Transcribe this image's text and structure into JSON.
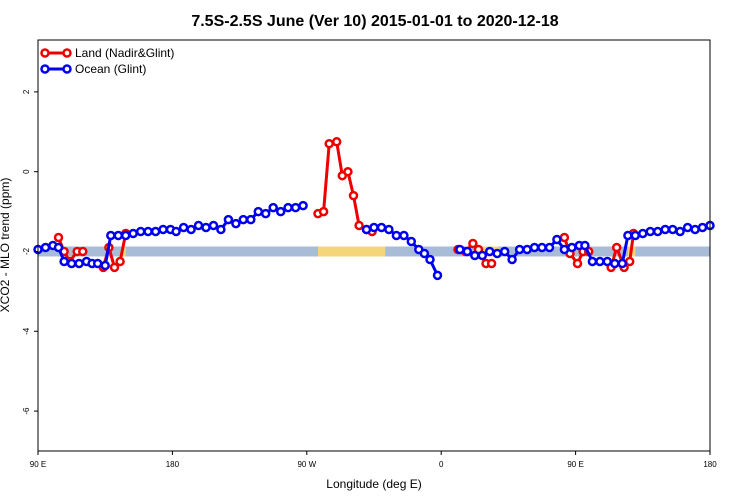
{
  "chart_data": {
    "type": "line",
    "title": "7.5S-2.5S June (Ver 10)   2015-01-01 to 2020-12-18",
    "xlabel": "Longitude (deg E)",
    "ylabel": "XCO2 - MLO trend (ppm)",
    "xlim": [
      90,
      450
    ],
    "ylim": [
      -7,
      3.3
    ],
    "x_ticks": [
      {
        "value": 90,
        "label": "90 E"
      },
      {
        "value": 162,
        "label": "180"
      },
      {
        "value": 234,
        "label": "90 W"
      },
      {
        "value": 306,
        "label": "0"
      },
      {
        "value": 378,
        "label": "90 E"
      },
      {
        "value": 450,
        "label": "180"
      }
    ],
    "y_ticks": [
      {
        "value": 2,
        "label": "2"
      },
      {
        "value": 0,
        "label": "0"
      },
      {
        "value": -2,
        "label": "-2"
      },
      {
        "value": -4,
        "label": "-4"
      },
      {
        "value": -6,
        "label": "-6"
      }
    ],
    "legend_position": "top-left",
    "colors": {
      "land": "#ee0000",
      "ocean": "#0000ee",
      "band_ocean": "#a8bcd8",
      "band_land": "#f5d57a"
    },
    "bands": [
      {
        "name": "ocean-band",
        "x0": 90,
        "x1": 450,
        "y": -2.0,
        "color": "#a8bcd8"
      },
      {
        "name": "land-band-1",
        "x0": 135,
        "x1": 137,
        "y": -2.0,
        "color": "#f5d57a"
      },
      {
        "name": "land-band-2",
        "x0": 240,
        "x1": 276,
        "y": -2.0,
        "color": "#f5d57a"
      },
      {
        "name": "land-band-3",
        "x0": 327,
        "x1": 337,
        "y": -2.0,
        "color": "#f5d57a"
      },
      {
        "name": "land-band-4",
        "x0": 406,
        "x1": 410,
        "y": -2.0,
        "color": "#f5d57a"
      }
    ],
    "series": [
      {
        "name": "Land (Nadir&Glint)",
        "color": "#ee0000",
        "segments": [
          [
            [
              101,
              -1.65
            ],
            [
              104,
              -2.0
            ],
            [
              107,
              -2.25
            ],
            [
              111,
              -2.0
            ],
            [
              114,
              -2.0
            ]
          ],
          [
            [
              125,
              -2.4
            ],
            [
              128,
              -1.9
            ],
            [
              131,
              -2.4
            ],
            [
              134,
              -2.25
            ],
            [
              137,
              -1.55
            ]
          ],
          [
            [
              240,
              -1.05
            ],
            [
              243,
              -1.0
            ],
            [
              246,
              0.7
            ],
            [
              250,
              0.75
            ],
            [
              253,
              -0.1
            ],
            [
              256,
              0.0
            ],
            [
              259,
              -0.6
            ],
            [
              262,
              -1.35
            ],
            [
              266,
              -1.45
            ],
            [
              269,
              -1.5
            ]
          ],
          [
            [
              315,
              -1.95
            ],
            [
              319,
              -2.0
            ],
            [
              323,
              -1.8
            ],
            [
              326,
              -1.95
            ],
            [
              330,
              -2.3
            ],
            [
              333,
              -2.3
            ]
          ],
          [
            [
              372,
              -1.65
            ],
            [
              375,
              -2.05
            ],
            [
              379,
              -2.3
            ],
            [
              382,
              -2.0
            ],
            [
              385,
              -2.0
            ]
          ],
          [
            [
              397,
              -2.4
            ],
            [
              400,
              -1.9
            ],
            [
              404,
              -2.4
            ],
            [
              407,
              -2.25
            ],
            [
              409,
              -1.55
            ]
          ]
        ]
      },
      {
        "name": "Ocean (Glint)",
        "color": "#0000ee",
        "segments": [
          [
            [
              90,
              -1.95
            ],
            [
              94,
              -1.9
            ],
            [
              98,
              -1.85
            ],
            [
              101,
              -1.9
            ],
            [
              104,
              -2.25
            ],
            [
              108,
              -2.3
            ],
            [
              112,
              -2.3
            ],
            [
              116,
              -2.25
            ],
            [
              119,
              -2.3
            ],
            [
              122,
              -2.3
            ],
            [
              126,
              -2.35
            ],
            [
              129,
              -1.6
            ],
            [
              133,
              -1.6
            ],
            [
              137,
              -1.6
            ],
            [
              141,
              -1.55
            ],
            [
              145,
              -1.5
            ],
            [
              149,
              -1.5
            ],
            [
              153,
              -1.5
            ],
            [
              157,
              -1.45
            ],
            [
              161,
              -1.45
            ],
            [
              164,
              -1.5
            ],
            [
              168,
              -1.4
            ],
            [
              172,
              -1.45
            ],
            [
              176,
              -1.35
            ],
            [
              180,
              -1.4
            ],
            [
              184,
              -1.35
            ],
            [
              188,
              -1.45
            ],
            [
              192,
              -1.2
            ],
            [
              196,
              -1.3
            ],
            [
              200,
              -1.2
            ],
            [
              204,
              -1.2
            ],
            [
              208,
              -1.0
            ],
            [
              212,
              -1.05
            ],
            [
              216,
              -0.9
            ],
            [
              220,
              -1.0
            ],
            [
              224,
              -0.9
            ],
            [
              228,
              -0.9
            ],
            [
              232,
              -0.85
            ]
          ],
          [
            [
              266,
              -1.45
            ],
            [
              270,
              -1.4
            ],
            [
              274,
              -1.4
            ],
            [
              278,
              -1.45
            ],
            [
              282,
              -1.6
            ],
            [
              286,
              -1.6
            ],
            [
              290,
              -1.75
            ],
            [
              294,
              -1.95
            ],
            [
              297,
              -2.05
            ],
            [
              300,
              -2.2
            ],
            [
              304,
              -2.6
            ]
          ],
          [
            [
              316,
              -1.95
            ],
            [
              320,
              -2.0
            ],
            [
              324,
              -2.1
            ],
            [
              328,
              -2.1
            ],
            [
              332,
              -2.0
            ],
            [
              336,
              -2.05
            ],
            [
              340,
              -2.0
            ],
            [
              344,
              -2.2
            ],
            [
              348,
              -1.95
            ],
            [
              352,
              -1.95
            ],
            [
              356,
              -1.9
            ],
            [
              360,
              -1.9
            ],
            [
              364,
              -1.9
            ],
            [
              368,
              -1.7
            ],
            [
              372,
              -1.95
            ],
            [
              376,
              -1.9
            ],
            [
              380,
              -1.85
            ],
            [
              383,
              -1.85
            ],
            [
              387,
              -2.25
            ],
            [
              391,
              -2.25
            ],
            [
              395,
              -2.25
            ],
            [
              399,
              -2.3
            ],
            [
              403,
              -2.3
            ],
            [
              406,
              -1.6
            ],
            [
              410,
              -1.6
            ],
            [
              414,
              -1.55
            ],
            [
              418,
              -1.5
            ],
            [
              422,
              -1.5
            ],
            [
              426,
              -1.45
            ],
            [
              430,
              -1.45
            ],
            [
              434,
              -1.5
            ],
            [
              438,
              -1.4
            ],
            [
              442,
              -1.45
            ],
            [
              446,
              -1.4
            ],
            [
              450,
              -1.35
            ]
          ]
        ]
      }
    ]
  }
}
